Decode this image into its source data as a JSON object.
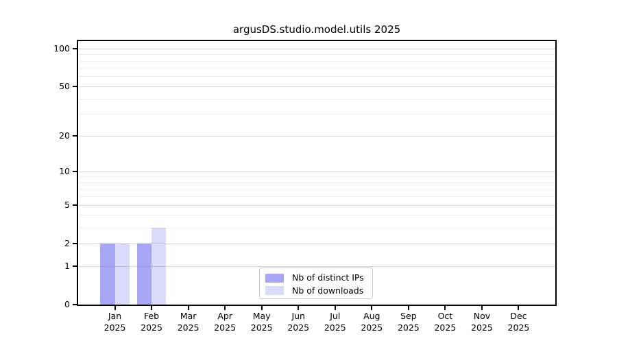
{
  "chart_data": {
    "type": "bar",
    "title": "argusDS.studio.model.utils 2025",
    "categories": [
      "Jan",
      "Feb",
      "Mar",
      "Apr",
      "May",
      "Jun",
      "Jul",
      "Aug",
      "Sep",
      "Oct",
      "Nov",
      "Dec"
    ],
    "x_sublabel": "2025",
    "series": [
      {
        "name": "Nb of distinct IPs",
        "color": "rgba(108,108,240,0.6)",
        "values": [
          2,
          2,
          0,
          0,
          0,
          0,
          0,
          0,
          0,
          0,
          0,
          0
        ]
      },
      {
        "name": "Nb of downloads",
        "color": "rgba(108,108,240,0.25)",
        "values": [
          2,
          3,
          0,
          0,
          0,
          0,
          0,
          0,
          0,
          0,
          0,
          0
        ]
      }
    ],
    "xlabel": "",
    "ylabel": "",
    "yscale": "log1p",
    "ylim": [
      0,
      115
    ],
    "yticks": [
      0,
      1,
      2,
      5,
      10,
      20,
      50,
      100
    ],
    "minor_yticks": [
      3,
      4,
      6,
      7,
      8,
      9,
      30,
      40,
      60,
      70,
      80,
      90
    ],
    "grid": true,
    "legend_position": "bottom-center"
  },
  "colors": {
    "background": "#ffffff",
    "axis": "#000000",
    "text": "#000000",
    "major_grid": "#d7d7d7",
    "minor_grid": "#eeeeee",
    "legend_border": "#c9c9c9"
  }
}
